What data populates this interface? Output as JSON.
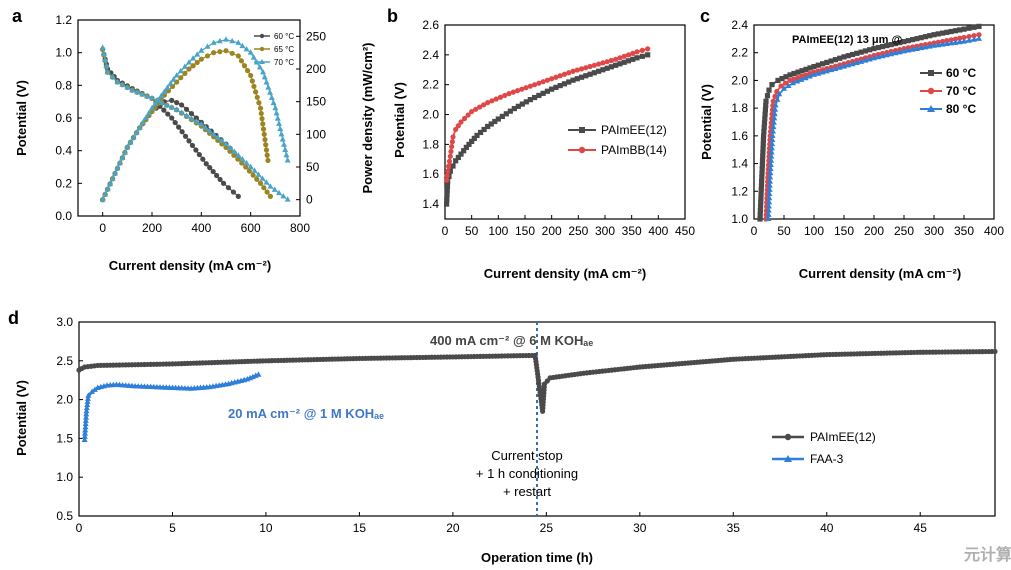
{
  "colors": {
    "dark": "#4a4a4a",
    "red": "#e04848",
    "blue": "#2f7fd8",
    "gold": "#9c8420",
    "teal": "#4aa3c8",
    "annot_blue": "#3f78c9",
    "divider": "#3a6ea8"
  },
  "watermark": "元计算",
  "chart_data": [
    {
      "panel": "a",
      "type": "line",
      "xlabel": "Current density (mA cm⁻²)",
      "ylabel": "Potential (V)",
      "y2label": "Power density (mW/cm²)",
      "xlim": [
        -100,
        800
      ],
      "ylim": [
        0.0,
        1.2
      ],
      "y2lim": [
        -25,
        275
      ],
      "xticks": [
        "0",
        "200",
        "400",
        "600",
        "800"
      ],
      "yticks": [
        "0.0",
        "0.2",
        "0.4",
        "0.6",
        "0.8",
        "1.0",
        "1.2"
      ],
      "y2ticks": [
        "0",
        "50",
        "100",
        "150",
        "200",
        "250"
      ],
      "legend": [
        "60 °C",
        "65 °C",
        "70 °C"
      ],
      "series": [
        {
          "name": "60 °C",
          "color": "dark",
          "polarization": {
            "x": [
              0,
              20,
              60,
              120,
              200,
              280,
              350,
              420,
              490,
              550
            ],
            "y": [
              1.02,
              0.9,
              0.83,
              0.78,
              0.72,
              0.6,
              0.46,
              0.32,
              0.2,
              0.12
            ]
          },
          "power": {
            "x": [
              0,
              50,
              100,
              150,
              200,
              250,
              280,
              320,
              380,
              440,
              500,
              550
            ],
            "y": [
              0,
              40,
              80,
              110,
              135,
              150,
              152,
              145,
              125,
              105,
              85,
              65
            ]
          }
        },
        {
          "name": "65 °C",
          "color": "gold",
          "polarization": {
            "x": [
              0,
              20,
              60,
              120,
              200,
              300,
              400,
              500,
              580,
              640,
              680
            ],
            "y": [
              1.02,
              0.88,
              0.82,
              0.77,
              0.72,
              0.65,
              0.55,
              0.42,
              0.3,
              0.2,
              0.12
            ]
          },
          "power": {
            "x": [
              0,
              50,
              100,
              150,
              200,
              250,
              300,
              350,
              400,
              450,
              500,
              550,
              600,
              640,
              670
            ],
            "y": [
              0,
              40,
              80,
              110,
              135,
              160,
              180,
              200,
              215,
              225,
              228,
              220,
              190,
              140,
              60
            ]
          }
        },
        {
          "name": "70 °C",
          "color": "teal",
          "polarization": {
            "x": [
              0,
              20,
              60,
              120,
              200,
              300,
              400,
              500,
              600,
              680,
              750
            ],
            "y": [
              1.03,
              0.88,
              0.82,
              0.77,
              0.72,
              0.65,
              0.56,
              0.44,
              0.3,
              0.18,
              0.1
            ]
          },
          "power": {
            "x": [
              0,
              50,
              100,
              150,
              200,
              250,
              300,
              350,
              400,
              450,
              500,
              550,
              600,
              650,
              700,
              750
            ],
            "y": [
              0,
              40,
              80,
              110,
              140,
              165,
              190,
              210,
              228,
              240,
              245,
              240,
              225,
              195,
              140,
              60
            ]
          }
        }
      ]
    },
    {
      "panel": "b",
      "type": "line",
      "xlabel": "Current density (mA cm⁻²)",
      "ylabel": "Potential (V)",
      "xlim": [
        0,
        450
      ],
      "ylim": [
        1.3,
        2.6
      ],
      "xticks": [
        "0",
        "50",
        "100",
        "150",
        "200",
        "250",
        "300",
        "350",
        "400",
        "450"
      ],
      "yticks": [
        "1.4",
        "1.6",
        "1.8",
        "2.0",
        "2.2",
        "2.4",
        "2.6"
      ],
      "series": [
        {
          "name": "PAImEE(12)",
          "color": "dark",
          "x": [
            3,
            5,
            10,
            20,
            40,
            60,
            80,
            100,
            130,
            160,
            200,
            240,
            280,
            320,
            360,
            380
          ],
          "y": [
            1.4,
            1.55,
            1.62,
            1.69,
            1.78,
            1.86,
            1.92,
            1.97,
            2.04,
            2.1,
            2.17,
            2.23,
            2.28,
            2.33,
            2.38,
            2.4
          ]
        },
        {
          "name": "PAImBB(14)",
          "color": "red",
          "x": [
            3,
            5,
            10,
            15,
            20,
            30,
            50,
            80,
            120,
            160,
            200,
            240,
            280,
            320,
            360,
            380
          ],
          "y": [
            1.56,
            1.62,
            1.72,
            1.85,
            1.9,
            1.95,
            2.02,
            2.08,
            2.14,
            2.19,
            2.24,
            2.29,
            2.33,
            2.37,
            2.42,
            2.44
          ]
        }
      ]
    },
    {
      "panel": "c",
      "type": "line",
      "title": "PAImEE(12) 13 μm @",
      "xlabel": "Current density (mA cm⁻²)",
      "ylabel": "Potential (V)",
      "xlim": [
        0,
        400
      ],
      "ylim": [
        1.0,
        2.4
      ],
      "xticks": [
        "0",
        "50",
        "100",
        "150",
        "200",
        "250",
        "300",
        "350",
        "400"
      ],
      "yticks": [
        "1.0",
        "1.2",
        "1.4",
        "1.6",
        "1.8",
        "2.0",
        "2.2",
        "2.4"
      ],
      "series": [
        {
          "name": "60 °C",
          "color": "dark",
          "x": [
            10,
            13,
            16,
            20,
            25,
            30,
            40,
            60,
            100,
            150,
            200,
            250,
            300,
            350,
            375
          ],
          "y": [
            1.0,
            1.3,
            1.6,
            1.85,
            1.93,
            1.97,
            2.0,
            2.04,
            2.1,
            2.17,
            2.23,
            2.28,
            2.33,
            2.37,
            2.39
          ]
        },
        {
          "name": "70 °C",
          "color": "red",
          "x": [
            20,
            23,
            27,
            32,
            38,
            45,
            60,
            100,
            150,
            200,
            250,
            300,
            350,
            375
          ],
          "y": [
            1.0,
            1.3,
            1.6,
            1.85,
            1.92,
            1.96,
            2.0,
            2.06,
            2.12,
            2.18,
            2.23,
            2.27,
            2.31,
            2.33
          ]
        },
        {
          "name": "80 °C",
          "color": "blue",
          "x": [
            24,
            27,
            31,
            36,
            42,
            50,
            65,
            100,
            150,
            200,
            250,
            300,
            350,
            375
          ],
          "y": [
            1.0,
            1.3,
            1.6,
            1.82,
            1.9,
            1.94,
            1.98,
            2.04,
            2.1,
            2.16,
            2.21,
            2.25,
            2.28,
            2.3
          ]
        }
      ]
    },
    {
      "panel": "d",
      "type": "line",
      "xlabel": "Operation time (h)",
      "ylabel": "Potential (V)",
      "xlim": [
        0,
        49
      ],
      "ylim": [
        0.5,
        3.0
      ],
      "xticks": [
        "0",
        "5",
        "10",
        "15",
        "20",
        "25",
        "30",
        "35",
        "40",
        "45"
      ],
      "yticks": [
        "0.5",
        "1.0",
        "1.5",
        "2.0",
        "2.5",
        "3.0"
      ],
      "vline_x": 24.5,
      "annotations": {
        "high_current": "400 mA cm⁻² @ 6 M KOHₐₑ",
        "low_current": "20 mA cm⁻² @ 1 M KOHₐₑ",
        "stop_line1": "Current stop",
        "stop_line2": "+ 1 h conditioning",
        "stop_line3": "+ restart"
      },
      "series": [
        {
          "name": "PAImEE(12)",
          "color": "dark",
          "x": [
            0,
            0.3,
            1,
            5,
            10,
            15,
            20,
            24.4,
            24.8,
            24.9,
            25.2,
            27,
            30,
            35,
            40,
            45,
            49
          ],
          "y": [
            2.38,
            2.42,
            2.44,
            2.46,
            2.5,
            2.53,
            2.55,
            2.57,
            1.85,
            2.2,
            2.28,
            2.34,
            2.42,
            2.52,
            2.58,
            2.61,
            2.62
          ]
        },
        {
          "name": "FAA-3",
          "color": "blue",
          "x": [
            0.3,
            0.4,
            0.5,
            0.7,
            1.0,
            1.5,
            2,
            3,
            4,
            5,
            6,
            7,
            8,
            9,
            9.6
          ],
          "y": [
            1.48,
            1.85,
            2.05,
            2.1,
            2.15,
            2.18,
            2.19,
            2.17,
            2.16,
            2.15,
            2.14,
            2.16,
            2.2,
            2.26,
            2.32
          ]
        }
      ]
    }
  ]
}
